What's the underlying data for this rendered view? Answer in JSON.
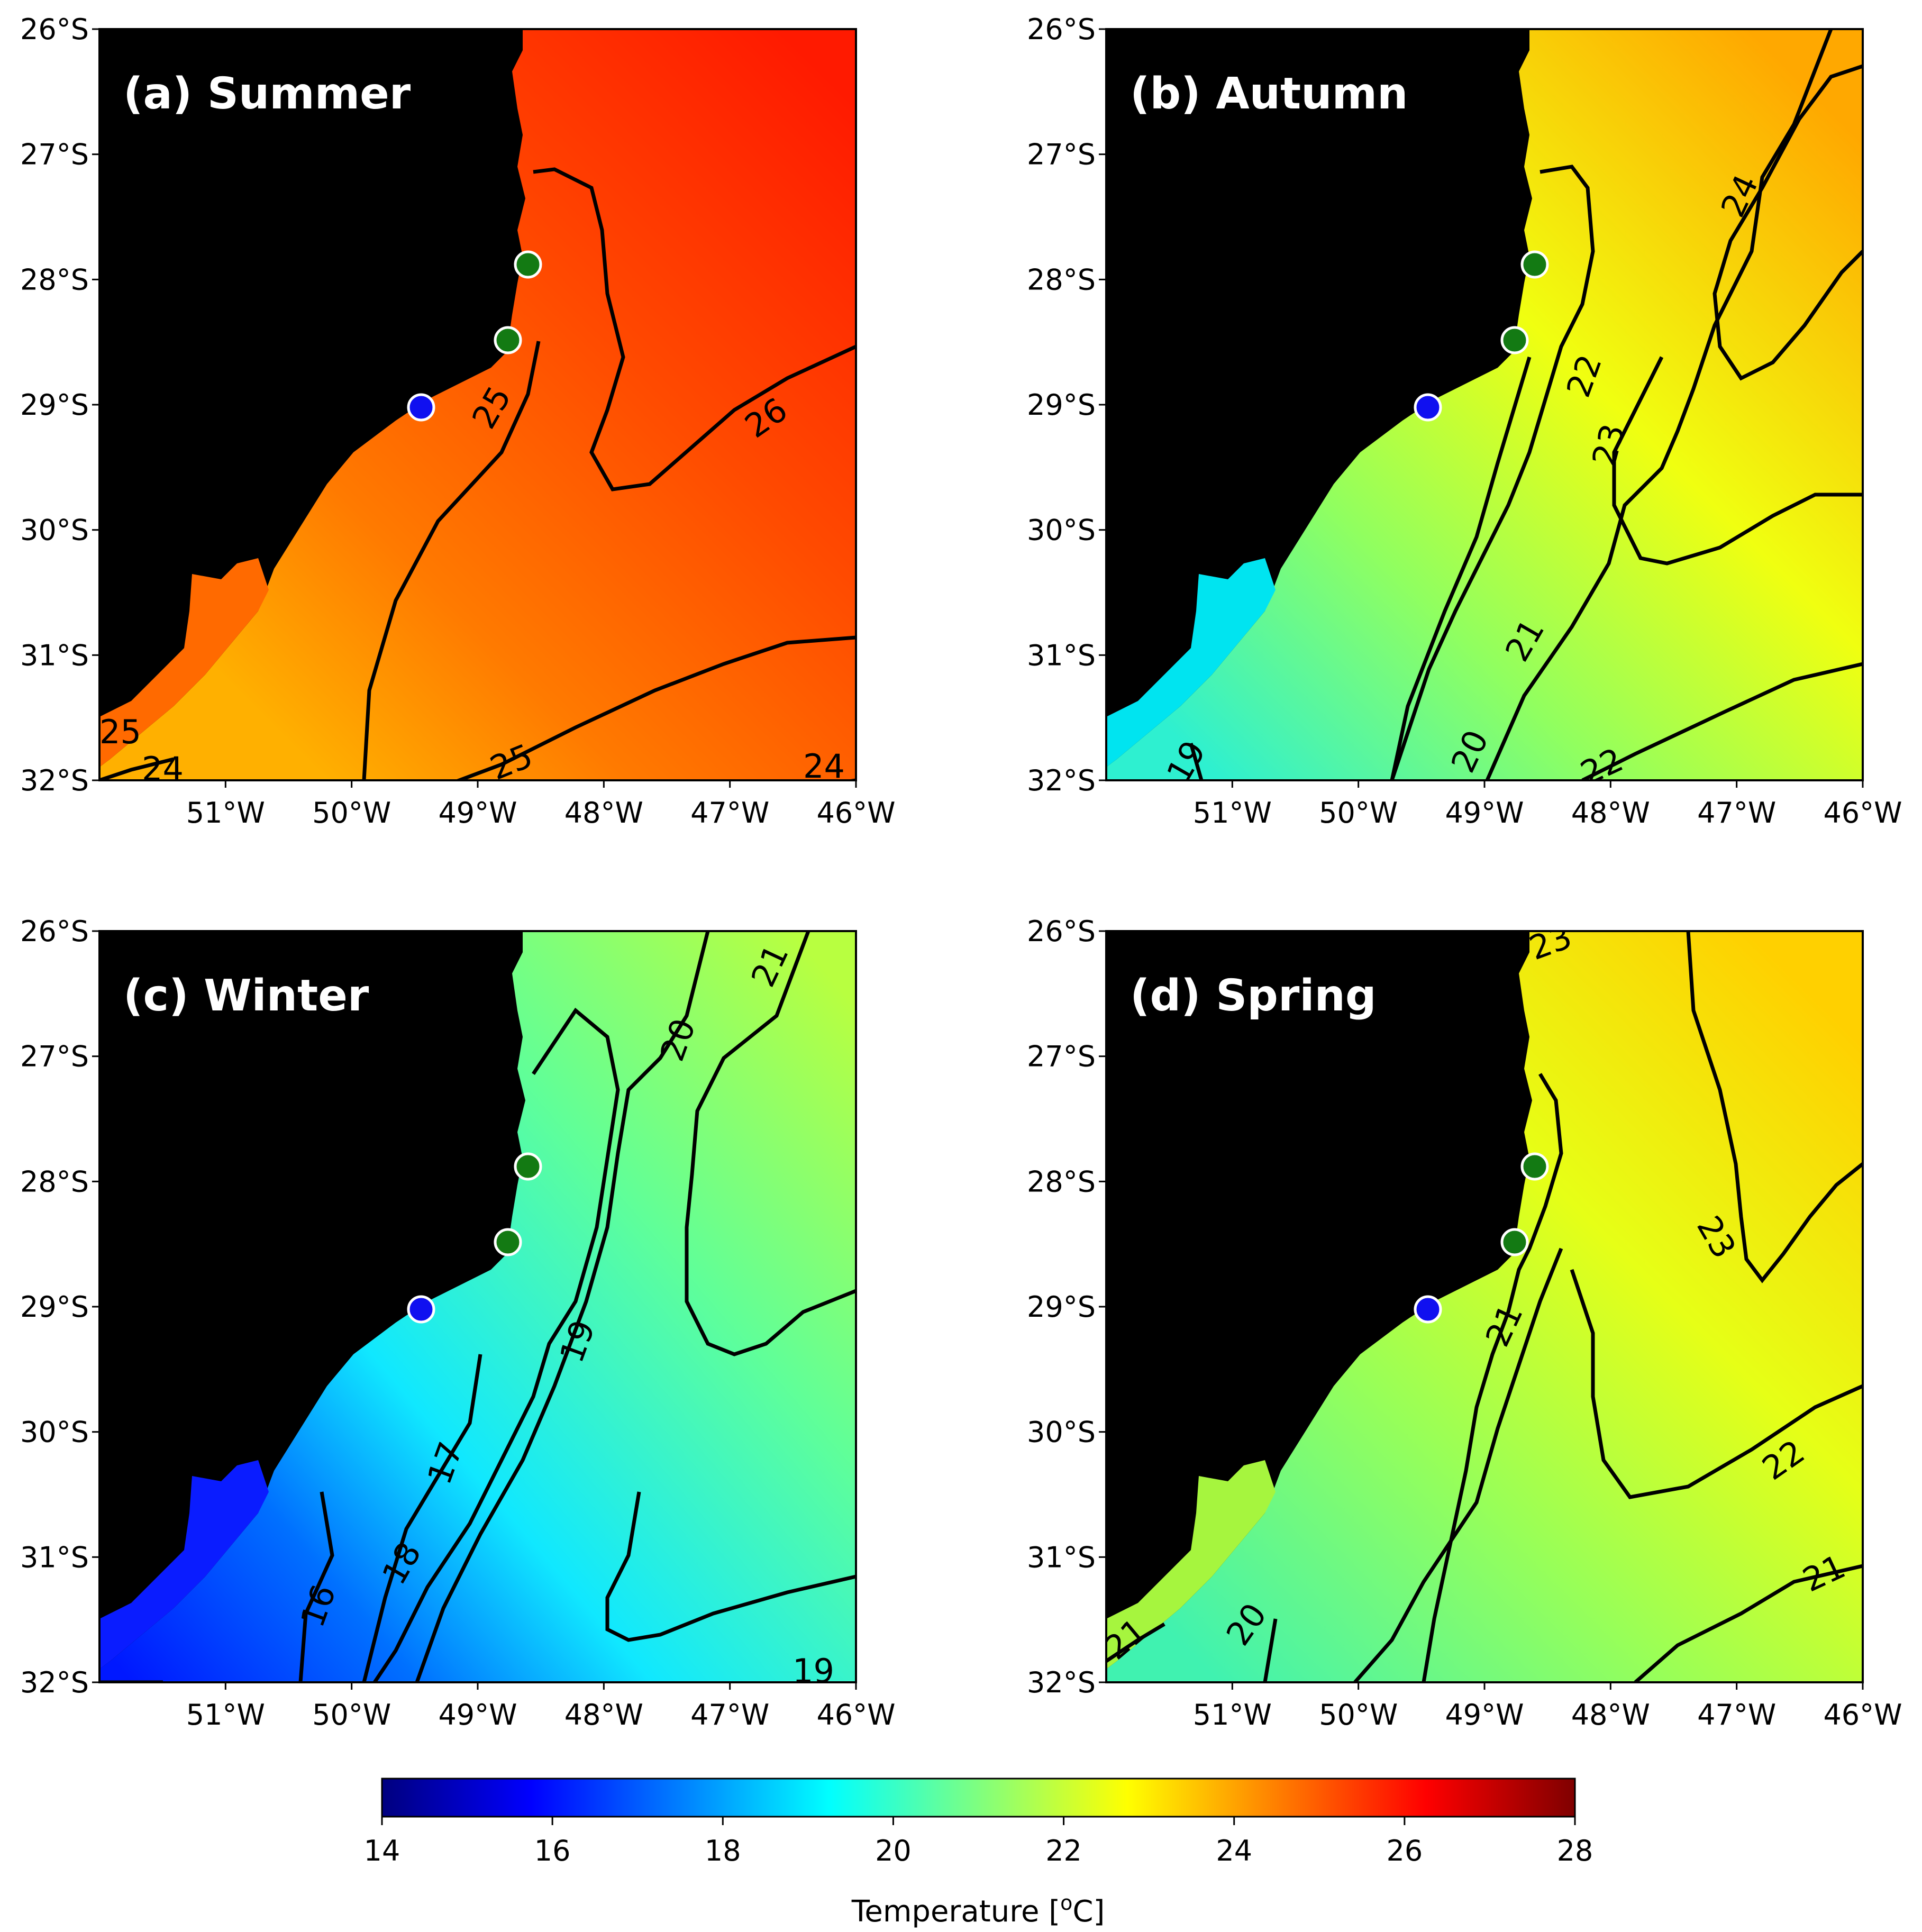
{
  "figure": {
    "colorbar": {
      "label": "Temperature [°C]",
      "label_prefix": "Temperature [",
      "label_unit_sup": "o",
      "label_suffix": "C]",
      "min": 14,
      "max": 28,
      "ticks": [
        "14",
        "16",
        "18",
        "20",
        "22",
        "24",
        "26",
        "28"
      ],
      "colormap": "jet"
    },
    "axes": {
      "lat_ticks": [
        "26°S",
        "27°S",
        "28°S",
        "29°S",
        "30°S",
        "31°S",
        "32°S"
      ],
      "lon_ticks": [
        "51°W",
        "50°W",
        "49°W",
        "48°W",
        "47°W",
        "46°W"
      ],
      "lat_range": [
        -32,
        -26
      ],
      "lon_range": [
        -52,
        -46
      ]
    },
    "panels": [
      {
        "title": "(a) Summer",
        "sst_range_c": [
          24,
          26.6
        ],
        "contour_labels": [
          "25",
          "26",
          "25",
          "24",
          "24",
          "25"
        ],
        "land_lagoon_color": "#ff6a00"
      },
      {
        "title": "(b) Autumn",
        "sst_range_c": [
          19,
          24.5
        ],
        "contour_labels": [
          "24",
          "22",
          "23",
          "21",
          "20",
          "19",
          "22"
        ],
        "land_lagoon_color": "#00e4f0"
      },
      {
        "title": "(c) Winter",
        "sst_range_c": [
          15,
          21.5
        ],
        "contour_labels": [
          "20",
          "21",
          "19",
          "17",
          "18",
          "16",
          "19"
        ],
        "land_lagoon_color": "#0a1cff"
      },
      {
        "title": "(d) Spring",
        "sst_range_c": [
          20,
          23.5
        ],
        "contour_labels": [
          "23",
          "23",
          "21",
          "22",
          "21",
          "20",
          "21"
        ],
        "land_lagoon_color": "#a6f53e"
      }
    ],
    "markers": {
      "green": [
        {
          "lon": -48.6,
          "lat": -27.9
        },
        {
          "lon": -48.8,
          "lat": -28.5
        }
      ],
      "blue": [
        {
          "lon": -49.4,
          "lat": -29.0
        }
      ],
      "green_color": "#137a13",
      "blue_color": "#1010f0"
    }
  }
}
